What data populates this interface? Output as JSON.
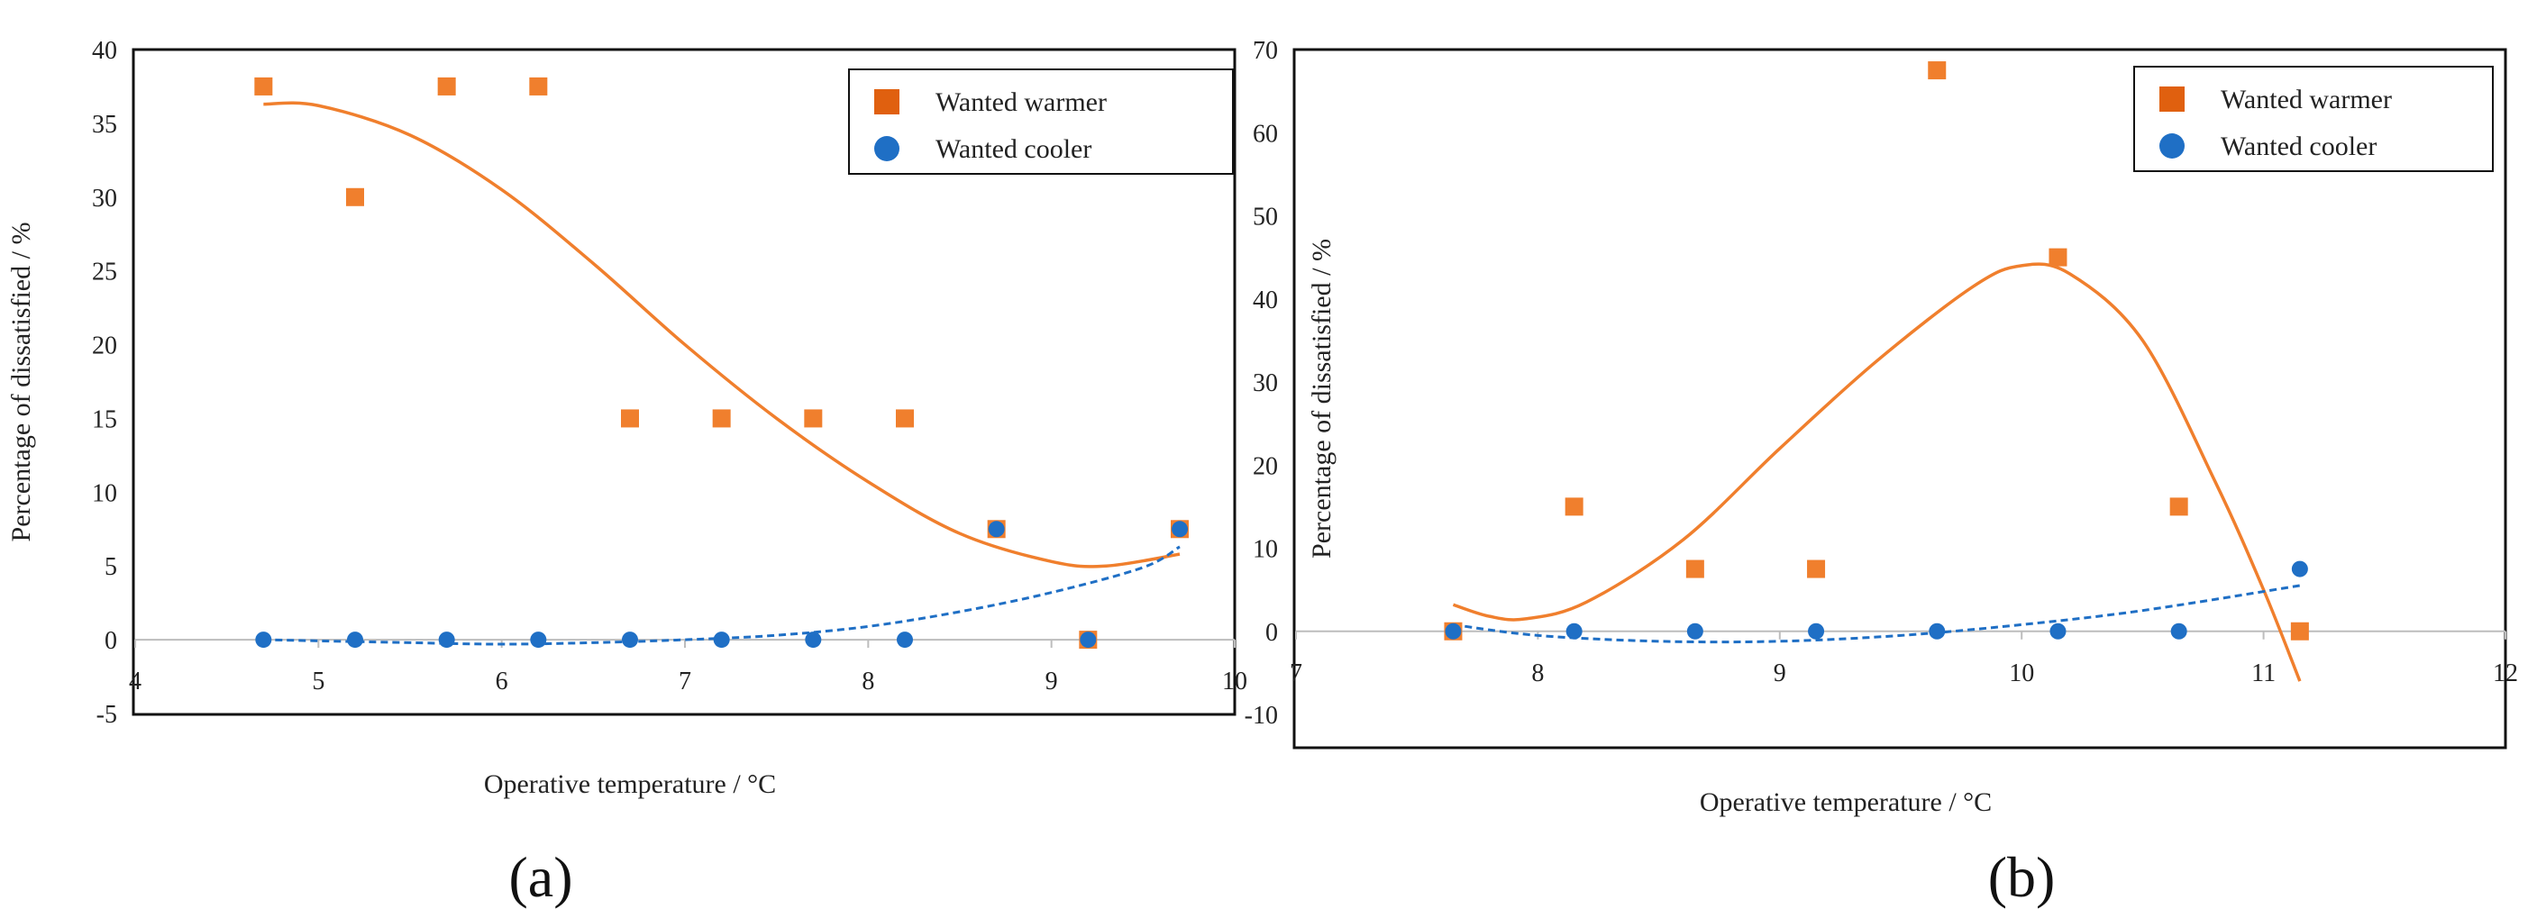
{
  "chart_data": [
    {
      "type": "scatter",
      "panel_label": "(a)",
      "xlabel": "Operative temperature / °C",
      "ylabel": "Percentage of dissatisfied / %",
      "xlim": [
        4,
        10
      ],
      "ylim": [
        -5,
        40
      ],
      "xticks": [
        "4",
        "5",
        "6",
        "7",
        "8",
        "9",
        "10"
      ],
      "yticks": [
        "-5",
        "0",
        "5",
        "10",
        "15",
        "20",
        "25",
        "30",
        "35",
        "40"
      ],
      "legend_position": "top-right",
      "series": [
        {
          "name": "Wanted warmer",
          "marker": "square",
          "color": "#F07F2D",
          "x": [
            4.7,
            5.2,
            5.7,
            6.2,
            6.7,
            7.2,
            7.7,
            8.2,
            8.7,
            9.2,
            9.7
          ],
          "y": [
            37.5,
            30,
            37.5,
            37.5,
            15,
            15,
            15,
            15,
            7.5,
            0,
            7.5
          ],
          "trend": {
            "style": "solid",
            "color": "#F07F2D",
            "x": [
              4.7,
              5.0,
              5.5,
              6.0,
              6.5,
              7.0,
              7.5,
              8.0,
              8.5,
              9.0,
              9.3,
              9.7
            ],
            "y": [
              36.3,
              36.2,
              34.2,
              30.5,
              25.5,
              20.0,
              15.0,
              10.7,
              7.2,
              5.3,
              5.0,
              5.8
            ]
          }
        },
        {
          "name": "Wanted cooler",
          "marker": "circle",
          "color": "#1F6FC5",
          "x": [
            4.7,
            5.2,
            5.7,
            6.2,
            6.7,
            7.2,
            7.7,
            8.2,
            8.7,
            9.2,
            9.7
          ],
          "y": [
            0,
            0,
            0,
            0,
            0,
            0,
            0,
            0,
            7.5,
            0,
            7.5
          ],
          "trend": {
            "style": "dashed",
            "color": "#1F6FC5",
            "x": [
              4.7,
              5.5,
              6.0,
              6.5,
              7.0,
              7.5,
              8.0,
              8.5,
              9.0,
              9.5,
              9.7
            ],
            "y": [
              0,
              -0.2,
              -0.3,
              -0.2,
              0,
              0.3,
              0.9,
              1.9,
              3.2,
              4.9,
              6.3
            ]
          }
        }
      ]
    },
    {
      "type": "scatter",
      "panel_label": "(b)",
      "xlabel": "Operative temperature / °C",
      "ylabel": "Percentage of dissatisfied / %",
      "xlim": [
        7,
        12
      ],
      "ylim": [
        -10,
        70
      ],
      "xticks": [
        "7",
        "8",
        "9",
        "10",
        "11",
        "12"
      ],
      "yticks": [
        "-10",
        "0",
        "10",
        "20",
        "30",
        "40",
        "50",
        "60",
        "70"
      ],
      "legend_position": "top-right",
      "series": [
        {
          "name": "Wanted warmer",
          "marker": "square",
          "color": "#F07F2D",
          "x": [
            7.65,
            8.15,
            8.65,
            9.15,
            9.65,
            10.15,
            10.65,
            11.15
          ],
          "y": [
            0,
            15,
            7.5,
            7.5,
            67.5,
            45,
            15,
            0
          ],
          "trend": {
            "style": "solid",
            "color": "#F07F2D",
            "x": [
              7.65,
              7.8,
              7.95,
              8.2,
              8.6,
              9.0,
              9.4,
              9.8,
              10.0,
              10.2,
              10.5,
              10.8,
              11.0,
              11.15
            ],
            "y": [
              3.2,
              1.8,
              1.5,
              3.5,
              11.0,
              22.0,
              32.5,
              41.5,
              44.0,
              43.0,
              35.0,
              18.0,
              5.0,
              -6.0
            ]
          }
        },
        {
          "name": "Wanted cooler",
          "marker": "circle",
          "color": "#1F6FC5",
          "x": [
            7.65,
            8.15,
            8.65,
            9.15,
            9.65,
            10.15,
            10.65,
            11.15
          ],
          "y": [
            0,
            0,
            0,
            0,
            0,
            0,
            0,
            7.5
          ],
          "trend": {
            "style": "dashed",
            "color": "#1F6FC5",
            "x": [
              7.65,
              8.0,
              8.5,
              9.0,
              9.5,
              10.0,
              10.5,
              11.15
            ],
            "y": [
              0.8,
              -0.5,
              -1.2,
              -1.2,
              -0.5,
              0.8,
              2.5,
              5.5
            ]
          }
        }
      ]
    }
  ]
}
